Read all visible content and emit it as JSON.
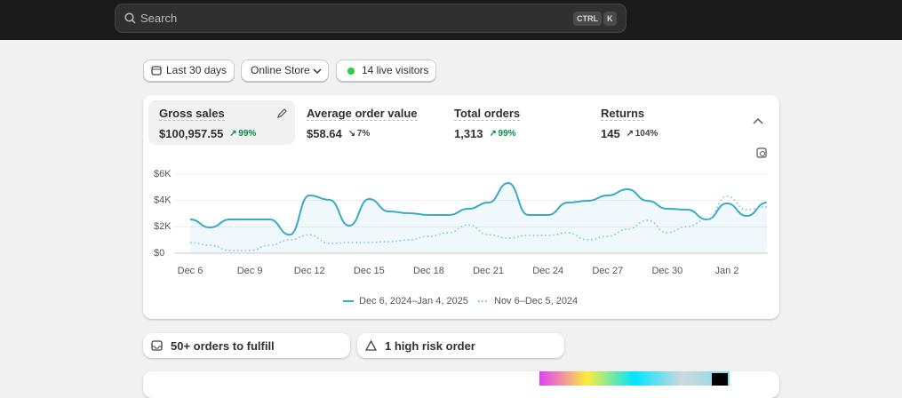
{
  "search": {
    "placeholder": "Search",
    "shortcut": [
      "CTRL",
      "K"
    ]
  },
  "filters": [
    "Last 30 days",
    "Online Store",
    "14 live visitors"
  ],
  "metrics": [
    {
      "label": "Gross sales",
      "value": "$100,957.55",
      "change": "99%"
    },
    {
      "label": "Average order value",
      "value": "$58.64",
      "change": "7%"
    },
    {
      "label": "Total orders",
      "value": "1,313",
      "change": "99%"
    },
    {
      "label": "Returns",
      "value": "145",
      "change": "104%"
    }
  ],
  "chart_data": {
    "type": "line",
    "categories": [
      "Dec 6",
      null,
      null,
      "Dec 9",
      null,
      null,
      "Dec 12",
      null,
      null,
      "Dec 15",
      null,
      null,
      "Dec 18",
      null,
      null,
      "Dec 21",
      null,
      null,
      "Dec 24",
      null,
      null,
      "Dec 27",
      null,
      null,
      "Dec 30",
      null,
      null,
      "Jan 2",
      null,
      null
    ],
    "series": [
      {
        "name": "Dec 6, 2024–Jan 4, 2025",
        "color": "#3aabc6",
        "values": [
          2560,
          1950,
          2560,
          2560,
          2560,
          1400,
          4380,
          4050,
          2090,
          4110,
          3170,
          3030,
          2900,
          2900,
          3370,
          3840,
          5330,
          2900,
          2900,
          3840,
          3980,
          4380,
          4850,
          3980,
          3370,
          3300,
          2560,
          3780,
          2830,
          3840
        ]
      },
      {
        "name": "Nov 6–Dec 5, 2024",
        "color": "#6cc6d8",
        "values": [
          810,
          600,
          200,
          200,
          600,
          1010,
          1400,
          740,
          810,
          810,
          880,
          1010,
          1280,
          1550,
          2160,
          1400,
          1150,
          1350,
          1350,
          1550,
          1010,
          1280,
          1820,
          2490,
          1550,
          2020,
          2560,
          4310,
          3300,
          3510
        ]
      }
    ],
    "ylim": [
      0,
      6000
    ],
    "yticks": [
      {
        "value": 0,
        "label": "$0"
      },
      {
        "value": 2000,
        "label": "$2K"
      },
      {
        "value": 4000,
        "label": "$4K"
      },
      {
        "value": 6000,
        "label": "$6K"
      }
    ],
    "grid": true
  },
  "tasks": [
    "50+ orders to fulfill",
    "1 high risk order"
  ]
}
